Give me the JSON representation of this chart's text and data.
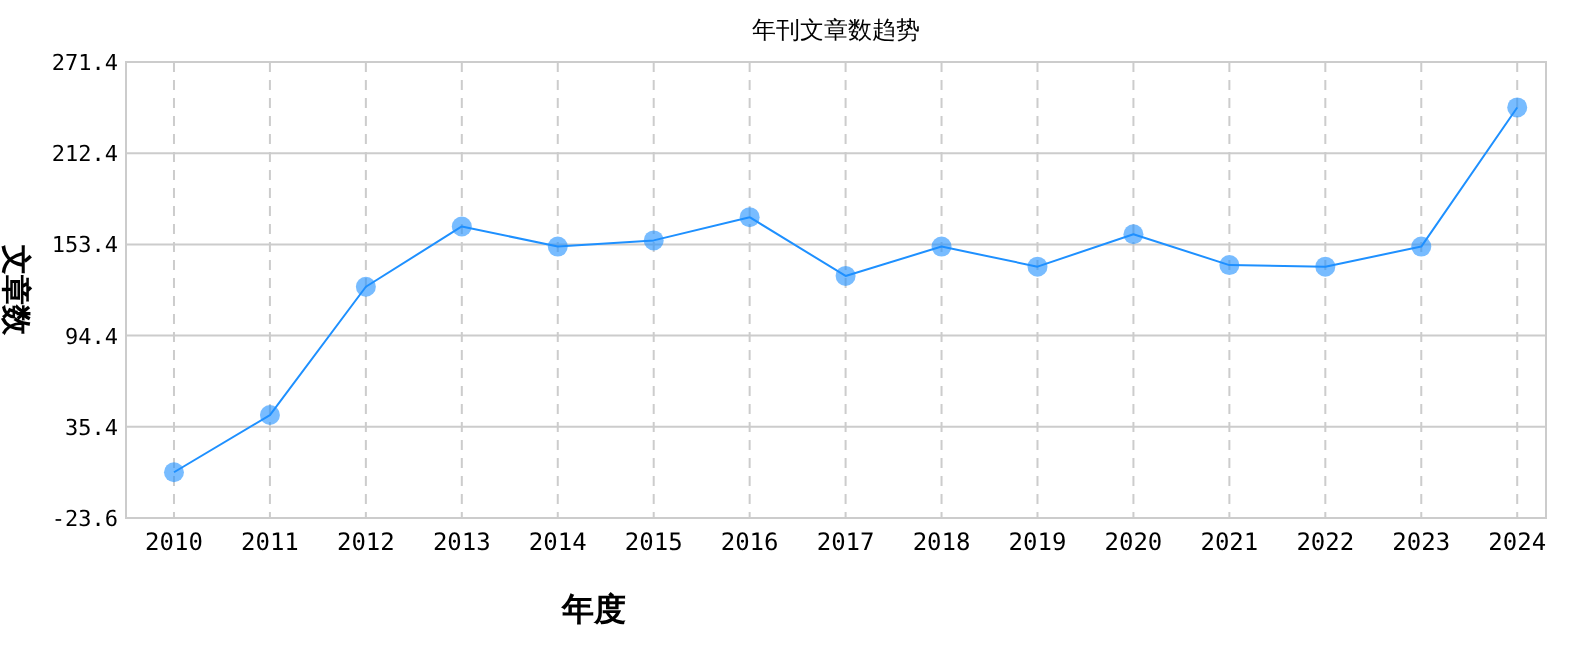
{
  "chart_data": {
    "type": "line",
    "title": "年刊文章数趋势",
    "xlabel": "年度",
    "ylabel": "文章数",
    "categories": [
      "2010",
      "2011",
      "2012",
      "2013",
      "2014",
      "2015",
      "2016",
      "2017",
      "2018",
      "2019",
      "2020",
      "2021",
      "2022",
      "2023",
      "2024"
    ],
    "series": [
      {
        "color": "#1e90ff",
        "values": [
          6,
          43,
          126,
          165,
          152,
          156,
          171,
          133,
          152,
          139,
          160,
          140,
          139,
          152,
          242
        ]
      }
    ],
    "ylim": [
      -23.6,
      271.4
    ],
    "yticks": [
      -23.6,
      35.4,
      94.4,
      153.4,
      212.4,
      271.4
    ],
    "grid": true,
    "marker": "circle",
    "line_style": "solid"
  }
}
